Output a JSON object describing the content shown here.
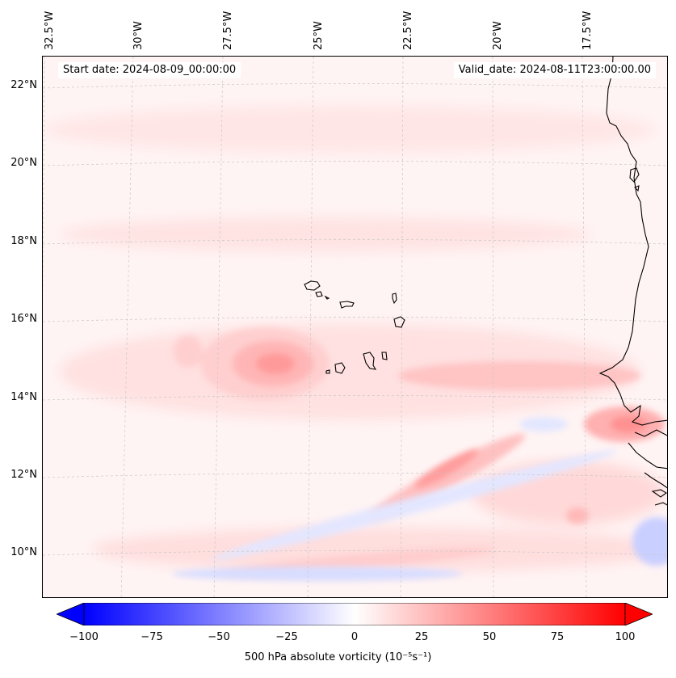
{
  "header": {
    "start_date": "Start date: 2024-08-09_00:00:00",
    "valid_date": "Valid_date: 2024-08-11T23:00:00.00"
  },
  "map": {
    "longitude_labels": [
      "32.5°W",
      "30°W",
      "27.5°W",
      "25°W",
      "22.5°W",
      "20°W",
      "17.5°W"
    ],
    "latitude_labels": [
      "22°N",
      "20°N",
      "18°N",
      "16°N",
      "14°N",
      "12°N",
      "10°N"
    ],
    "colors": {
      "negative": "#0000ff",
      "positive": "#ff0000",
      "coastline": "#000000",
      "gridline": "#c8c8c8"
    }
  },
  "colorbar": {
    "ticks": [
      "−100",
      "−75",
      "−50",
      "−25",
      "0",
      "25",
      "50",
      "75",
      "100"
    ],
    "label": "500 hPa absolute vorticity (10⁻⁵s⁻¹)",
    "min": -100,
    "max": 100
  }
}
